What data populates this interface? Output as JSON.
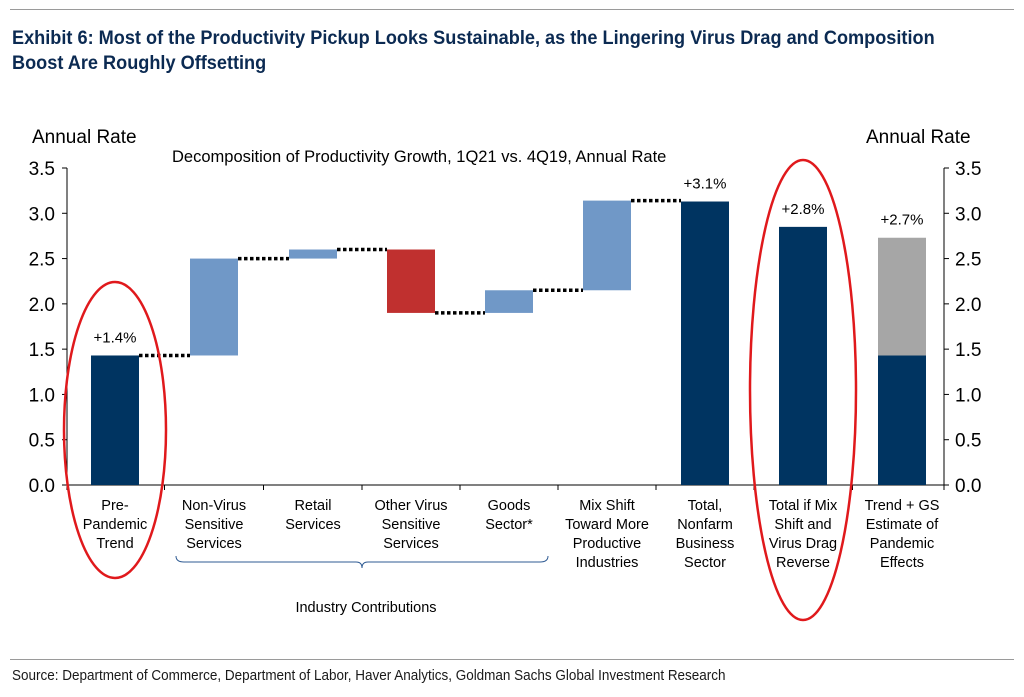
{
  "title": "Exhibit 6: Most of the Productivity Pickup Looks Sustainable, as the Lingering Virus Drag and Composition Boost Are Roughly Offsetting",
  "source": "Source: Department of Commerce, Department of Labor, Haver Analytics, Goldman Sachs Global Investment Research",
  "colors": {
    "navy": "#003461",
    "light_blue": "#7098c7",
    "red": "#c0302f",
    "gray": "#a6a6a6",
    "highlight": "#e0191c"
  },
  "chart_data": {
    "type": "bar",
    "subtitle": "Decomposition of Productivity Growth, 1Q21 vs. 4Q19, Annual Rate",
    "ylabel_left": "Annual Rate",
    "ylabel_right": "Annual Rate",
    "ylim": [
      0,
      3.5
    ],
    "yticks": [
      "0.0",
      "0.5",
      "1.0",
      "1.5",
      "2.0",
      "2.5",
      "3.0",
      "3.5"
    ],
    "grid": false,
    "group_label": "Industry Contributions",
    "bars": [
      {
        "category": [
          "Pre-",
          "Pandemic",
          "Trend"
        ],
        "bottom": 0,
        "top": 1.43,
        "color": "navy",
        "label": "+1.4%"
      },
      {
        "category": [
          "Non-Virus",
          "Sensitive",
          "Services"
        ],
        "bottom": 1.43,
        "top": 2.5,
        "color": "light_blue",
        "label": ""
      },
      {
        "category": [
          "Retail",
          "Services"
        ],
        "bottom": 2.5,
        "top": 2.6,
        "color": "light_blue",
        "label": ""
      },
      {
        "category": [
          "Other Virus",
          "Sensitive",
          "Services"
        ],
        "bottom": 1.9,
        "top": 2.6,
        "color": "red",
        "label": ""
      },
      {
        "category": [
          "Goods",
          "Sector*"
        ],
        "bottom": 1.9,
        "top": 2.15,
        "color": "light_blue",
        "label": ""
      },
      {
        "category": [
          "Mix Shift",
          "Toward More",
          "Productive",
          "Industries"
        ],
        "bottom": 2.15,
        "top": 3.14,
        "color": "light_blue",
        "label": ""
      },
      {
        "category": [
          "Total,",
          "Nonfarm",
          "Business",
          "Sector"
        ],
        "bottom": 0,
        "top": 3.13,
        "color": "navy",
        "label": "+3.1%"
      },
      {
        "category": [
          "Total if Mix",
          "Shift and",
          "Virus Drag",
          "Reverse"
        ],
        "bottom": 0,
        "top": 2.85,
        "color": "navy",
        "label": "+2.8%"
      },
      {
        "category": [
          "Trend + GS",
          "Estimate of",
          "Pandemic",
          "Effects"
        ],
        "bottom": 0,
        "top": 2.73,
        "color": "gray",
        "label": "+2.7%",
        "base_top": 1.43,
        "base_color": "navy"
      }
    ],
    "connectors": [
      {
        "from_bar": 0,
        "to_bar": 1,
        "y": 1.43
      },
      {
        "from_bar": 1,
        "to_bar": 2,
        "y": 2.5
      },
      {
        "from_bar": 2,
        "to_bar": 3,
        "y": 2.6
      },
      {
        "from_bar": 3,
        "to_bar": 4,
        "y": 1.9
      },
      {
        "from_bar": 4,
        "to_bar": 5,
        "y": 2.15
      },
      {
        "from_bar": 5,
        "to_bar": 6,
        "y": 3.14
      }
    ],
    "highlighted_bars": [
      0,
      7
    ]
  }
}
